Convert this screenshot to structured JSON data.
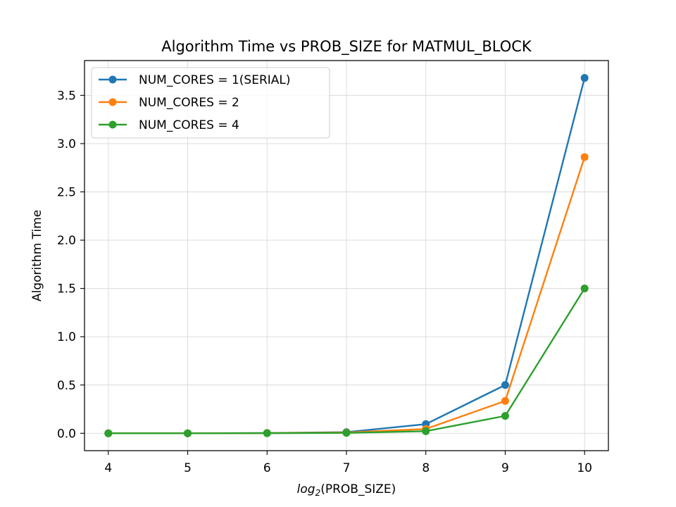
{
  "chart_data": {
    "type": "line",
    "title": "Algorithm Time vs PROB_SIZE for MATMUL_BLOCK",
    "xlabel": "log2(PROB_SIZE)",
    "xlabel_parts": {
      "base": "log",
      "subscript": "2",
      "argument": "(PROB_SIZE)"
    },
    "ylabel": "Algorithm Time",
    "x": [
      4,
      5,
      6,
      7,
      8,
      9,
      10
    ],
    "xlim": [
      3.7,
      10.3
    ],
    "ylim": [
      -0.18,
      3.86
    ],
    "xticks": [
      4,
      5,
      6,
      7,
      8,
      9,
      10
    ],
    "xtick_labels": [
      "4",
      "5",
      "6",
      "7",
      "8",
      "9",
      "10"
    ],
    "yticks": [
      0.0,
      0.5,
      1.0,
      1.5,
      2.0,
      2.5,
      3.0,
      3.5
    ],
    "ytick_labels": [
      "0.0",
      "0.5",
      "1.0",
      "1.5",
      "2.0",
      "2.5",
      "3.0",
      "3.5"
    ],
    "grid": true,
    "legend_position": "upper-left",
    "marker": "circle",
    "series": [
      {
        "name": "NUM_CORES = 1(SERIAL)",
        "color": "#1f77b4",
        "values": [
          0.0,
          0.0,
          0.003,
          0.012,
          0.095,
          0.5,
          3.68
        ]
      },
      {
        "name": "NUM_CORES = 2",
        "color": "#ff7f0e",
        "values": [
          0.0,
          0.0,
          0.002,
          0.008,
          0.045,
          0.335,
          2.86
        ]
      },
      {
        "name": "NUM_CORES = 4",
        "color": "#2ca02c",
        "values": [
          0.0,
          0.0,
          0.001,
          0.004,
          0.022,
          0.18,
          1.5
        ]
      }
    ]
  }
}
